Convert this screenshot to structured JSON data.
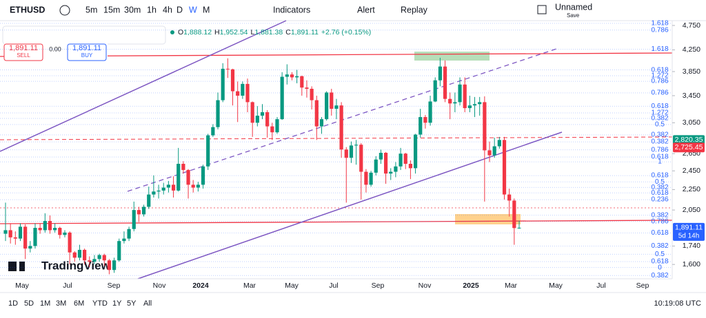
{
  "toolbar": {
    "symbol": "ETHUSD",
    "intervals": [
      "5m",
      "15m",
      "30m",
      "1h",
      "4h",
      "D",
      "W",
      "M"
    ],
    "indicators": "Indicators",
    "alert": "Alert",
    "replay": "Replay",
    "layout_name": "Unnamed",
    "save": "Save"
  },
  "trade": {
    "sell_price": "1,891.11",
    "sell": "SELL",
    "spread": "0.00",
    "buy_price": "1,891.11",
    "buy": "BUY"
  },
  "legend": {
    "o": "O",
    "open": "1,888.12",
    "h": "H",
    "high": "1,952.54",
    "l": "L",
    "low": "1,881.38",
    "c": "C",
    "close": "1,891.11",
    "change": "+2.76 (+0.15%)"
  },
  "logo": "TradingView",
  "ranges": [
    "1D",
    "5D",
    "1M",
    "3M",
    "6M",
    "YTD",
    "1Y",
    "5Y",
    "All"
  ],
  "clock": "10:19:08 UTC",
  "chart_data": {
    "type": "candlestick",
    "log_scale": true,
    "up_color": "#089981",
    "down_color": "#f23645",
    "ylim": [
      1499,
      4855
    ],
    "yticks": [
      {
        "value": 4750,
        "label": "4,750"
      },
      {
        "value": 4250,
        "label": "4,250"
      },
      {
        "value": 3850,
        "label": "3,850"
      },
      {
        "value": 3450,
        "label": "3,450"
      },
      {
        "value": 3050,
        "label": "3,050"
      },
      {
        "value": 2650,
        "label": "2,650"
      },
      {
        "value": 2450,
        "label": "2,450"
      },
      {
        "value": 2250,
        "label": "2,250"
      },
      {
        "value": 2050,
        "label": "2,050"
      },
      {
        "value": 1740,
        "label": "1,740"
      },
      {
        "value": 1600,
        "label": "1,600"
      }
    ],
    "x_labels": [
      "May",
      "Jul",
      "Sep",
      "Nov",
      "2024",
      "Mar",
      "May",
      "Jul",
      "Sep",
      "Nov",
      "2025",
      "Mar",
      "May",
      "Jul",
      "Sep"
    ],
    "candles": [
      [
        1840,
        2120,
        1780,
        1870
      ],
      [
        1870,
        1930,
        1760,
        1810
      ],
      [
        1810,
        1860,
        1750,
        1800
      ],
      [
        1800,
        1930,
        1780,
        1900
      ],
      [
        1900,
        1920,
        1640,
        1720
      ],
      [
        1720,
        1780,
        1690,
        1740
      ],
      [
        1740,
        1930,
        1720,
        1890
      ],
      [
        1890,
        1930,
        1840,
        1870
      ],
      [
        1870,
        2020,
        1850,
        1950
      ],
      [
        1950,
        2000,
        1840,
        1870
      ],
      [
        1870,
        1930,
        1850,
        1890
      ],
      [
        1890,
        1900,
        1800,
        1830
      ],
      [
        1830,
        1870,
        1810,
        1850
      ],
      [
        1850,
        1860,
        1600,
        1690
      ],
      [
        1690,
        1700,
        1620,
        1650
      ],
      [
        1650,
        1750,
        1630,
        1710
      ],
      [
        1710,
        1720,
        1600,
        1630
      ],
      [
        1630,
        1660,
        1580,
        1620
      ],
      [
        1620,
        1670,
        1600,
        1640
      ],
      [
        1640,
        1680,
        1620,
        1670
      ],
      [
        1670,
        1680,
        1590,
        1630
      ],
      [
        1630,
        1640,
        1530,
        1560
      ],
      [
        1560,
        1650,
        1540,
        1630
      ],
      [
        1630,
        1800,
        1620,
        1780
      ],
      [
        1780,
        1860,
        1760,
        1800
      ],
      [
        1800,
        1900,
        1780,
        1880
      ],
      [
        1880,
        2130,
        1860,
        2050
      ],
      [
        2050,
        2080,
        1940,
        2010
      ],
      [
        2010,
        2100,
        1990,
        2080
      ],
      [
        2080,
        2280,
        2060,
        2200
      ],
      [
        2200,
        2400,
        2170,
        2230
      ],
      [
        2230,
        2300,
        2160,
        2240
      ],
      [
        2240,
        2320,
        2200,
        2270
      ],
      [
        2270,
        2340,
        2220,
        2300
      ],
      [
        2300,
        2390,
        2170,
        2240
      ],
      [
        2240,
        2720,
        2230,
        2530
      ],
      [
        2530,
        2560,
        2420,
        2460
      ],
      [
        2460,
        2470,
        2160,
        2300
      ],
      [
        2300,
        2350,
        2220,
        2270
      ],
      [
        2270,
        2330,
        2230,
        2300
      ],
      [
        2300,
        2520,
        2260,
        2500
      ],
      [
        2500,
        2900,
        2460,
        2880
      ],
      [
        2880,
        3030,
        2860,
        2990
      ],
      [
        2990,
        3500,
        2960,
        3380
      ],
      [
        3380,
        4000,
        3350,
        3900
      ],
      [
        3900,
        4090,
        3740,
        3890
      ],
      [
        3890,
        3900,
        3300,
        3520
      ],
      [
        3520,
        3680,
        3060,
        3450
      ],
      [
        3450,
        3680,
        3400,
        3640
      ],
      [
        3640,
        3730,
        3200,
        3350
      ],
      [
        3350,
        3360,
        2860,
        3050
      ],
      [
        3050,
        3290,
        3000,
        3150
      ],
      [
        3150,
        3320,
        3100,
        3200
      ],
      [
        3200,
        3230,
        2850,
        3000
      ],
      [
        3000,
        3050,
        2820,
        2920
      ],
      [
        2920,
        3130,
        2900,
        3100
      ],
      [
        3100,
        3840,
        3090,
        3760
      ],
      [
        3760,
        3980,
        3630,
        3800
      ],
      [
        3800,
        3840,
        3700,
        3750
      ],
      [
        3750,
        3880,
        3650,
        3770
      ],
      [
        3770,
        3780,
        3450,
        3580
      ],
      [
        3580,
        3700,
        3420,
        3560
      ],
      [
        3560,
        3600,
        3240,
        3380
      ],
      [
        3380,
        3450,
        2820,
        3000
      ],
      [
        3000,
        3130,
        2900,
        3100
      ],
      [
        3100,
        3520,
        3080,
        3500
      ],
      [
        3500,
        3560,
        3150,
        3250
      ],
      [
        3250,
        3400,
        3100,
        3300
      ],
      [
        3300,
        3350,
        2600,
        2700
      ],
      [
        2700,
        2730,
        2120,
        2600
      ],
      [
        2600,
        2800,
        2540,
        2750
      ],
      [
        2750,
        2820,
        2520,
        2760
      ],
      [
        2760,
        2780,
        2150,
        2440
      ],
      [
        2440,
        2470,
        2220,
        2300
      ],
      [
        2300,
        2450,
        2280,
        2430
      ],
      [
        2430,
        2620,
        2400,
        2580
      ],
      [
        2580,
        2700,
        2530,
        2660
      ],
      [
        2660,
        2670,
        2310,
        2420
      ],
      [
        2420,
        2480,
        2350,
        2440
      ],
      [
        2440,
        2550,
        2380,
        2500
      ],
      [
        2500,
        2720,
        2460,
        2650
      ],
      [
        2650,
        2660,
        2470,
        2530
      ],
      [
        2530,
        2570,
        2360,
        2480
      ],
      [
        2480,
        2900,
        2420,
        2890
      ],
      [
        2890,
        3250,
        2850,
        3130
      ],
      [
        3130,
        3160,
        2970,
        3050
      ],
      [
        3050,
        3450,
        3010,
        3360
      ],
      [
        3360,
        3750,
        3350,
        3700
      ],
      [
        3700,
        4100,
        3600,
        3940
      ],
      [
        3940,
        4050,
        3350,
        3400
      ],
      [
        3400,
        3500,
        3100,
        3330
      ],
      [
        3330,
        3500,
        3200,
        3350
      ],
      [
        3350,
        3750,
        3300,
        3630
      ],
      [
        3630,
        3750,
        3200,
        3260
      ],
      [
        3260,
        3450,
        3200,
        3300
      ],
      [
        3300,
        3430,
        3130,
        3320
      ],
      [
        3320,
        3430,
        3150,
        3350
      ],
      [
        3350,
        3440,
        2130,
        2690
      ],
      [
        2690,
        2800,
        2550,
        2630
      ],
      [
        2630,
        2850,
        2600,
        2740
      ],
      [
        2740,
        2860,
        2710,
        2820
      ],
      [
        2820,
        2860,
        2150,
        2200
      ],
      [
        2200,
        2260,
        1990,
        2140
      ],
      [
        2140,
        2160,
        1750,
        1888.35
      ],
      [
        1888.12,
        1952.54,
        1881.38,
        1891.11
      ]
    ],
    "fib_levels": [
      {
        "label": "1.618",
        "price": 4795
      },
      {
        "label": "0.786",
        "price": 4649
      },
      {
        "label": "1.618",
        "price": 4262
      },
      {
        "label": "0.618",
        "price": 3878
      },
      {
        "label": "1.272",
        "price": 3778
      },
      {
        "label": "0.786",
        "price": 3684
      },
      {
        "label": "0.786",
        "price": 3494
      },
      {
        "label": "0.618",
        "price": 3290
      },
      {
        "label": "1.272",
        "price": 3190
      },
      {
        "label": "0.382",
        "price": 3111
      },
      {
        "label": "0.5",
        "price": 3025
      },
      {
        "label": "0.382",
        "price": 2886
      },
      {
        "label": "0.382",
        "price": 2796
      },
      {
        "label": "0.786",
        "price": 2695
      },
      {
        "label": "0.618",
        "price": 2610
      },
      {
        "label": "1",
        "price": 2553
      },
      {
        "label": "0.618",
        "price": 2398
      },
      {
        "label": "0.5",
        "price": 2331
      },
      {
        "label": "0.382",
        "price": 2273
      },
      {
        "label": "0.618",
        "price": 2217
      },
      {
        "label": "0.236",
        "price": 2149
      },
      {
        "label": "0.382",
        "price": 2001
      },
      {
        "label": "0.786",
        "price": 1945
      },
      {
        "label": "0.618",
        "price": 1848
      },
      {
        "label": "0.382",
        "price": 1741
      },
      {
        "label": "0.5",
        "price": 1677
      },
      {
        "label": "0.618",
        "price": 1621
      },
      {
        "label": "0",
        "price": 1577
      },
      {
        "label": "0.382",
        "price": 1522
      }
    ],
    "price_tags": [
      {
        "value": 2820.35,
        "label": "2,820.35",
        "color": "#089981"
      },
      {
        "value": 2725.45,
        "label": "2,725.45",
        "color": "#f23645"
      },
      {
        "value": 1891.11,
        "label": "1,891.11",
        "sub": "5d 14h",
        "color": "#2962ff"
      }
    ]
  }
}
